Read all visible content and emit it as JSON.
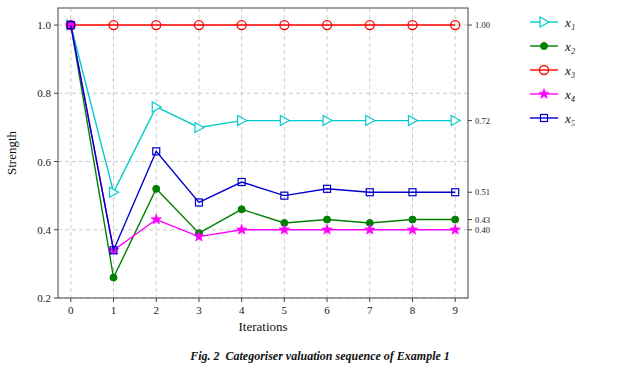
{
  "chart_data": {
    "type": "line",
    "title": "Fig. 2  Categoriser valuation sequence of Example 1",
    "x_label": "Iterations",
    "y_label": "Strength",
    "x": [
      0,
      1,
      2,
      3,
      4,
      5,
      6,
      7,
      8,
      9
    ],
    "xlim": [
      -0.3,
      9.3
    ],
    "xticks": [
      0,
      1,
      2,
      3,
      4,
      5,
      6,
      7,
      8,
      9
    ],
    "ylim": [
      0.2,
      1.05
    ],
    "yticks": [
      0.2,
      0.4,
      0.6,
      0.8,
      {
        "value": 1.0,
        "label": "1.0"
      }
    ],
    "y2lim": [
      0.2,
      1.05
    ],
    "y2ticks": [
      {
        "value": 1.0,
        "label": "1.00"
      },
      0.72,
      0.51,
      0.43,
      {
        "value": 0.4,
        "label": "0.40"
      }
    ],
    "grid": true,
    "legend": "right",
    "series": [
      {
        "name": "x₁",
        "color": "#00CCCC",
        "marker": "triangle-right-open",
        "values": [
          1.0,
          0.51,
          0.76,
          0.7,
          0.72,
          0.72,
          0.72,
          0.72,
          0.72,
          0.72
        ]
      },
      {
        "name": "x₂",
        "color": "#008000",
        "marker": "circle",
        "values": [
          1.0,
          0.26,
          0.52,
          0.39,
          0.46,
          0.42,
          0.43,
          0.42,
          0.43,
          0.43
        ]
      },
      {
        "name": "x₃",
        "color": "#FF0000",
        "marker": "circle-open",
        "values": [
          1.0,
          1.0,
          1.0,
          1.0,
          1.0,
          1.0,
          1.0,
          1.0,
          1.0,
          1.0
        ]
      },
      {
        "name": "x₄",
        "color": "#FF00FF",
        "marker": "star",
        "values": [
          1.0,
          0.34,
          0.43,
          0.38,
          0.4,
          0.4,
          0.4,
          0.4,
          0.4,
          0.4
        ]
      },
      {
        "name": "x₅",
        "color": "#0000CC",
        "marker": "square-open",
        "values": [
          1.0,
          0.34,
          0.63,
          0.48,
          0.54,
          0.5,
          0.52,
          0.51,
          0.51,
          0.51
        ]
      }
    ]
  }
}
